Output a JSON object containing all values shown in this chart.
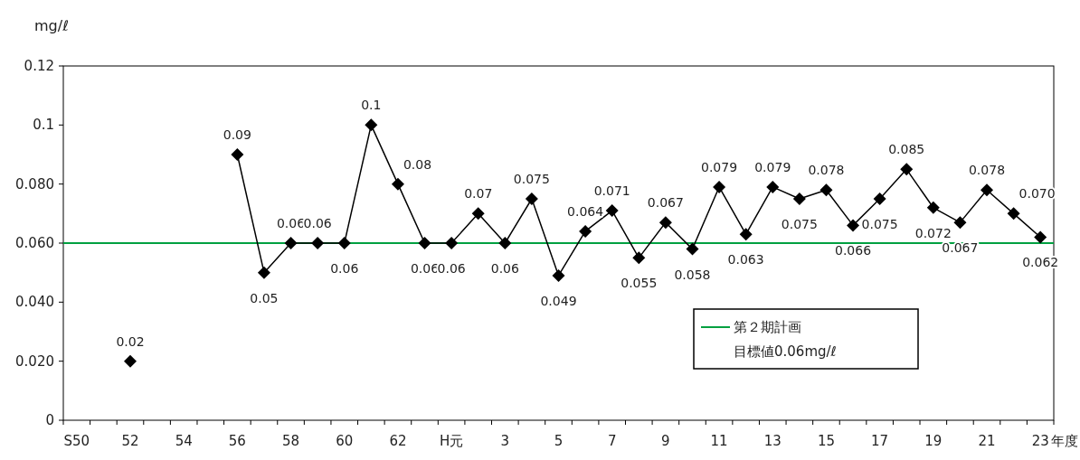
{
  "chart_data": {
    "type": "line",
    "ylabel": "mg/ℓ",
    "xlabel": "年度",
    "categories": [
      "S50",
      null,
      "52",
      null,
      "54",
      null,
      "56",
      null,
      "58",
      null,
      "60",
      null,
      "62",
      null,
      "H元",
      null,
      "3",
      null,
      "5",
      null,
      "7",
      null,
      "9",
      null,
      "11",
      null,
      "13",
      null,
      "15",
      null,
      "17",
      null,
      "19",
      null,
      "21",
      null,
      "23"
    ],
    "series": [
      {
        "color": "#000000",
        "marker": "diamond",
        "values": [
          null,
          null,
          0.02,
          null,
          null,
          null,
          0.09,
          0.05,
          0.06,
          0.06,
          0.06,
          0.1,
          0.08,
          0.06,
          0.06,
          0.07,
          0.06,
          0.075,
          0.049,
          0.064,
          0.071,
          0.055,
          0.067,
          0.058,
          0.079,
          0.063,
          0.079,
          0.075,
          0.078,
          0.066,
          0.075,
          0.085,
          0.072,
          0.067,
          0.078,
          0.07,
          0.062
        ],
        "value_labels": [
          null,
          null,
          "0.02",
          null,
          null,
          null,
          "0.09",
          "0.05",
          "0.06",
          "0.06",
          "0.06",
          "0.1",
          "0.08",
          "0.06",
          "0.06",
          "0.07",
          "0.06",
          "0.075",
          "0.049",
          "0.064",
          "0.071",
          "0.055",
          "0.067",
          "0.058",
          "0.079",
          "0.063",
          "0.079",
          "0.075",
          "0.078",
          "0.066",
          "0.075",
          "0.085",
          "0.072",
          "0.067",
          "0.078",
          "0.070",
          "0.062"
        ]
      }
    ],
    "ylim": [
      0,
      0.12
    ],
    "yticks": [
      0,
      {
        "value": 0.02,
        "label": "0.020"
      },
      {
        "value": 0.04,
        "label": "0.040"
      },
      {
        "value": 0.06,
        "label": "0.060"
      },
      {
        "value": 0.08,
        "label": "0.080"
      },
      0.1,
      0.12
    ],
    "ref_lines": [
      {
        "axis": "y",
        "value": 0.06,
        "label": "第２期計画",
        "color": "#00a040"
      }
    ],
    "annotations": [
      "目標値0.06mg/ℓ"
    ],
    "legend": "bottom right",
    "grid": false
  }
}
